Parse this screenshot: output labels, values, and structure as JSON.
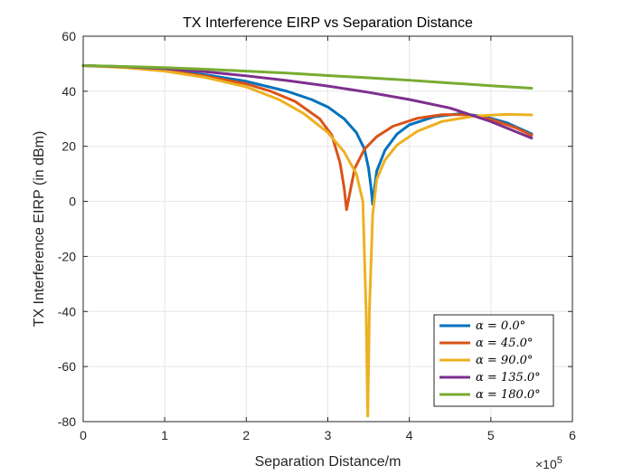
{
  "chart_data": {
    "type": "line",
    "title": "TX Interference EIRP vs Separation Distance",
    "xlabel": "Separation Distance/m",
    "ylabel": "TX Interference EIRP (in dBm)",
    "x_exponent_label": "×10",
    "x_exponent_power": "5",
    "xlim": [
      0,
      6
    ],
    "ylim": [
      -80,
      60
    ],
    "x_ticks": [
      0,
      1,
      2,
      3,
      4,
      5,
      6
    ],
    "x_tick_labels": [
      "0",
      "1",
      "2",
      "3",
      "4",
      "5",
      "6"
    ],
    "y_ticks": [
      -80,
      -60,
      -40,
      -20,
      0,
      20,
      40,
      60
    ],
    "y_tick_labels": [
      "-80",
      "-60",
      "-40",
      "-20",
      "0",
      "20",
      "40",
      "60"
    ],
    "grid": true,
    "legend_position": "bottom-right",
    "x_units_note": "x values in units of 10^5 m",
    "series": [
      {
        "name": "α = 0.0°",
        "color": "#0072BD",
        "points": [
          [
            0,
            49.3
          ],
          [
            0.5,
            48.9
          ],
          [
            1.0,
            47.8
          ],
          [
            1.5,
            46.0
          ],
          [
            2.0,
            43.6
          ],
          [
            2.5,
            40.0
          ],
          [
            2.8,
            37.0
          ],
          [
            3.0,
            34.3
          ],
          [
            3.2,
            30.0
          ],
          [
            3.35,
            25.0
          ],
          [
            3.45,
            19.0
          ],
          [
            3.5,
            12.0
          ],
          [
            3.53,
            5.0
          ],
          [
            3.55,
            -1.0
          ],
          [
            3.57,
            4.0
          ],
          [
            3.6,
            11.0
          ],
          [
            3.7,
            18.5
          ],
          [
            3.85,
            24.5
          ],
          [
            4.0,
            27.8
          ],
          [
            4.3,
            30.7
          ],
          [
            4.6,
            31.8
          ],
          [
            4.9,
            31.0
          ],
          [
            5.2,
            28.5
          ],
          [
            5.5,
            24.5
          ]
        ]
      },
      {
        "name": "α = 45.0°",
        "color": "#D95319",
        "points": [
          [
            0,
            49.3
          ],
          [
            0.5,
            48.8
          ],
          [
            1.0,
            47.6
          ],
          [
            1.5,
            45.5
          ],
          [
            2.0,
            42.7
          ],
          [
            2.3,
            40.0
          ],
          [
            2.6,
            36.3
          ],
          [
            2.9,
            30.0
          ],
          [
            3.05,
            24.0
          ],
          [
            3.15,
            14.0
          ],
          [
            3.2,
            5.0
          ],
          [
            3.23,
            -3.0
          ],
          [
            3.27,
            3.0
          ],
          [
            3.33,
            12.0
          ],
          [
            3.45,
            19.0
          ],
          [
            3.6,
            23.5
          ],
          [
            3.8,
            27.3
          ],
          [
            4.1,
            30.2
          ],
          [
            4.4,
            31.5
          ],
          [
            4.7,
            31.5
          ],
          [
            5.0,
            29.8
          ],
          [
            5.3,
            26.8
          ],
          [
            5.5,
            24.0
          ]
        ]
      },
      {
        "name": "α = 90.0°",
        "color": "#EDB120",
        "points": [
          [
            0,
            49.3
          ],
          [
            0.5,
            48.6
          ],
          [
            1.0,
            47.3
          ],
          [
            1.5,
            45.0
          ],
          [
            2.0,
            41.6
          ],
          [
            2.4,
            37.0
          ],
          [
            2.7,
            32.0
          ],
          [
            3.0,
            25.0
          ],
          [
            3.2,
            18.0
          ],
          [
            3.35,
            10.0
          ],
          [
            3.43,
            0.0
          ],
          [
            3.47,
            -40.0
          ],
          [
            3.49,
            -78.0
          ],
          [
            3.51,
            -40.0
          ],
          [
            3.55,
            -5.0
          ],
          [
            3.6,
            8.0
          ],
          [
            3.7,
            15.0
          ],
          [
            3.85,
            20.5
          ],
          [
            4.1,
            25.5
          ],
          [
            4.4,
            29.0
          ],
          [
            4.8,
            31.0
          ],
          [
            5.2,
            31.6
          ],
          [
            5.5,
            31.4
          ]
        ]
      },
      {
        "name": "α = 135.0°",
        "color": "#7E2F8E",
        "points": [
          [
            0,
            49.3
          ],
          [
            0.5,
            48.9
          ],
          [
            1.0,
            48.2
          ],
          [
            1.5,
            47.1
          ],
          [
            2.0,
            45.6
          ],
          [
            2.5,
            43.9
          ],
          [
            3.0,
            41.9
          ],
          [
            3.5,
            39.6
          ],
          [
            4.0,
            37.0
          ],
          [
            4.5,
            33.9
          ],
          [
            5.0,
            29.0
          ],
          [
            5.5,
            23.0
          ]
        ]
      },
      {
        "name": "α = 180.0°",
        "color": "#77AC30",
        "points": [
          [
            0,
            49.3
          ],
          [
            0.5,
            49.0
          ],
          [
            1.0,
            48.6
          ],
          [
            1.5,
            48.0
          ],
          [
            2.0,
            47.3
          ],
          [
            2.5,
            46.6
          ],
          [
            3.0,
            45.7
          ],
          [
            3.5,
            44.9
          ],
          [
            4.0,
            44.0
          ],
          [
            4.5,
            43.0
          ],
          [
            5.0,
            42.0
          ],
          [
            5.5,
            41.1
          ]
        ]
      }
    ]
  }
}
